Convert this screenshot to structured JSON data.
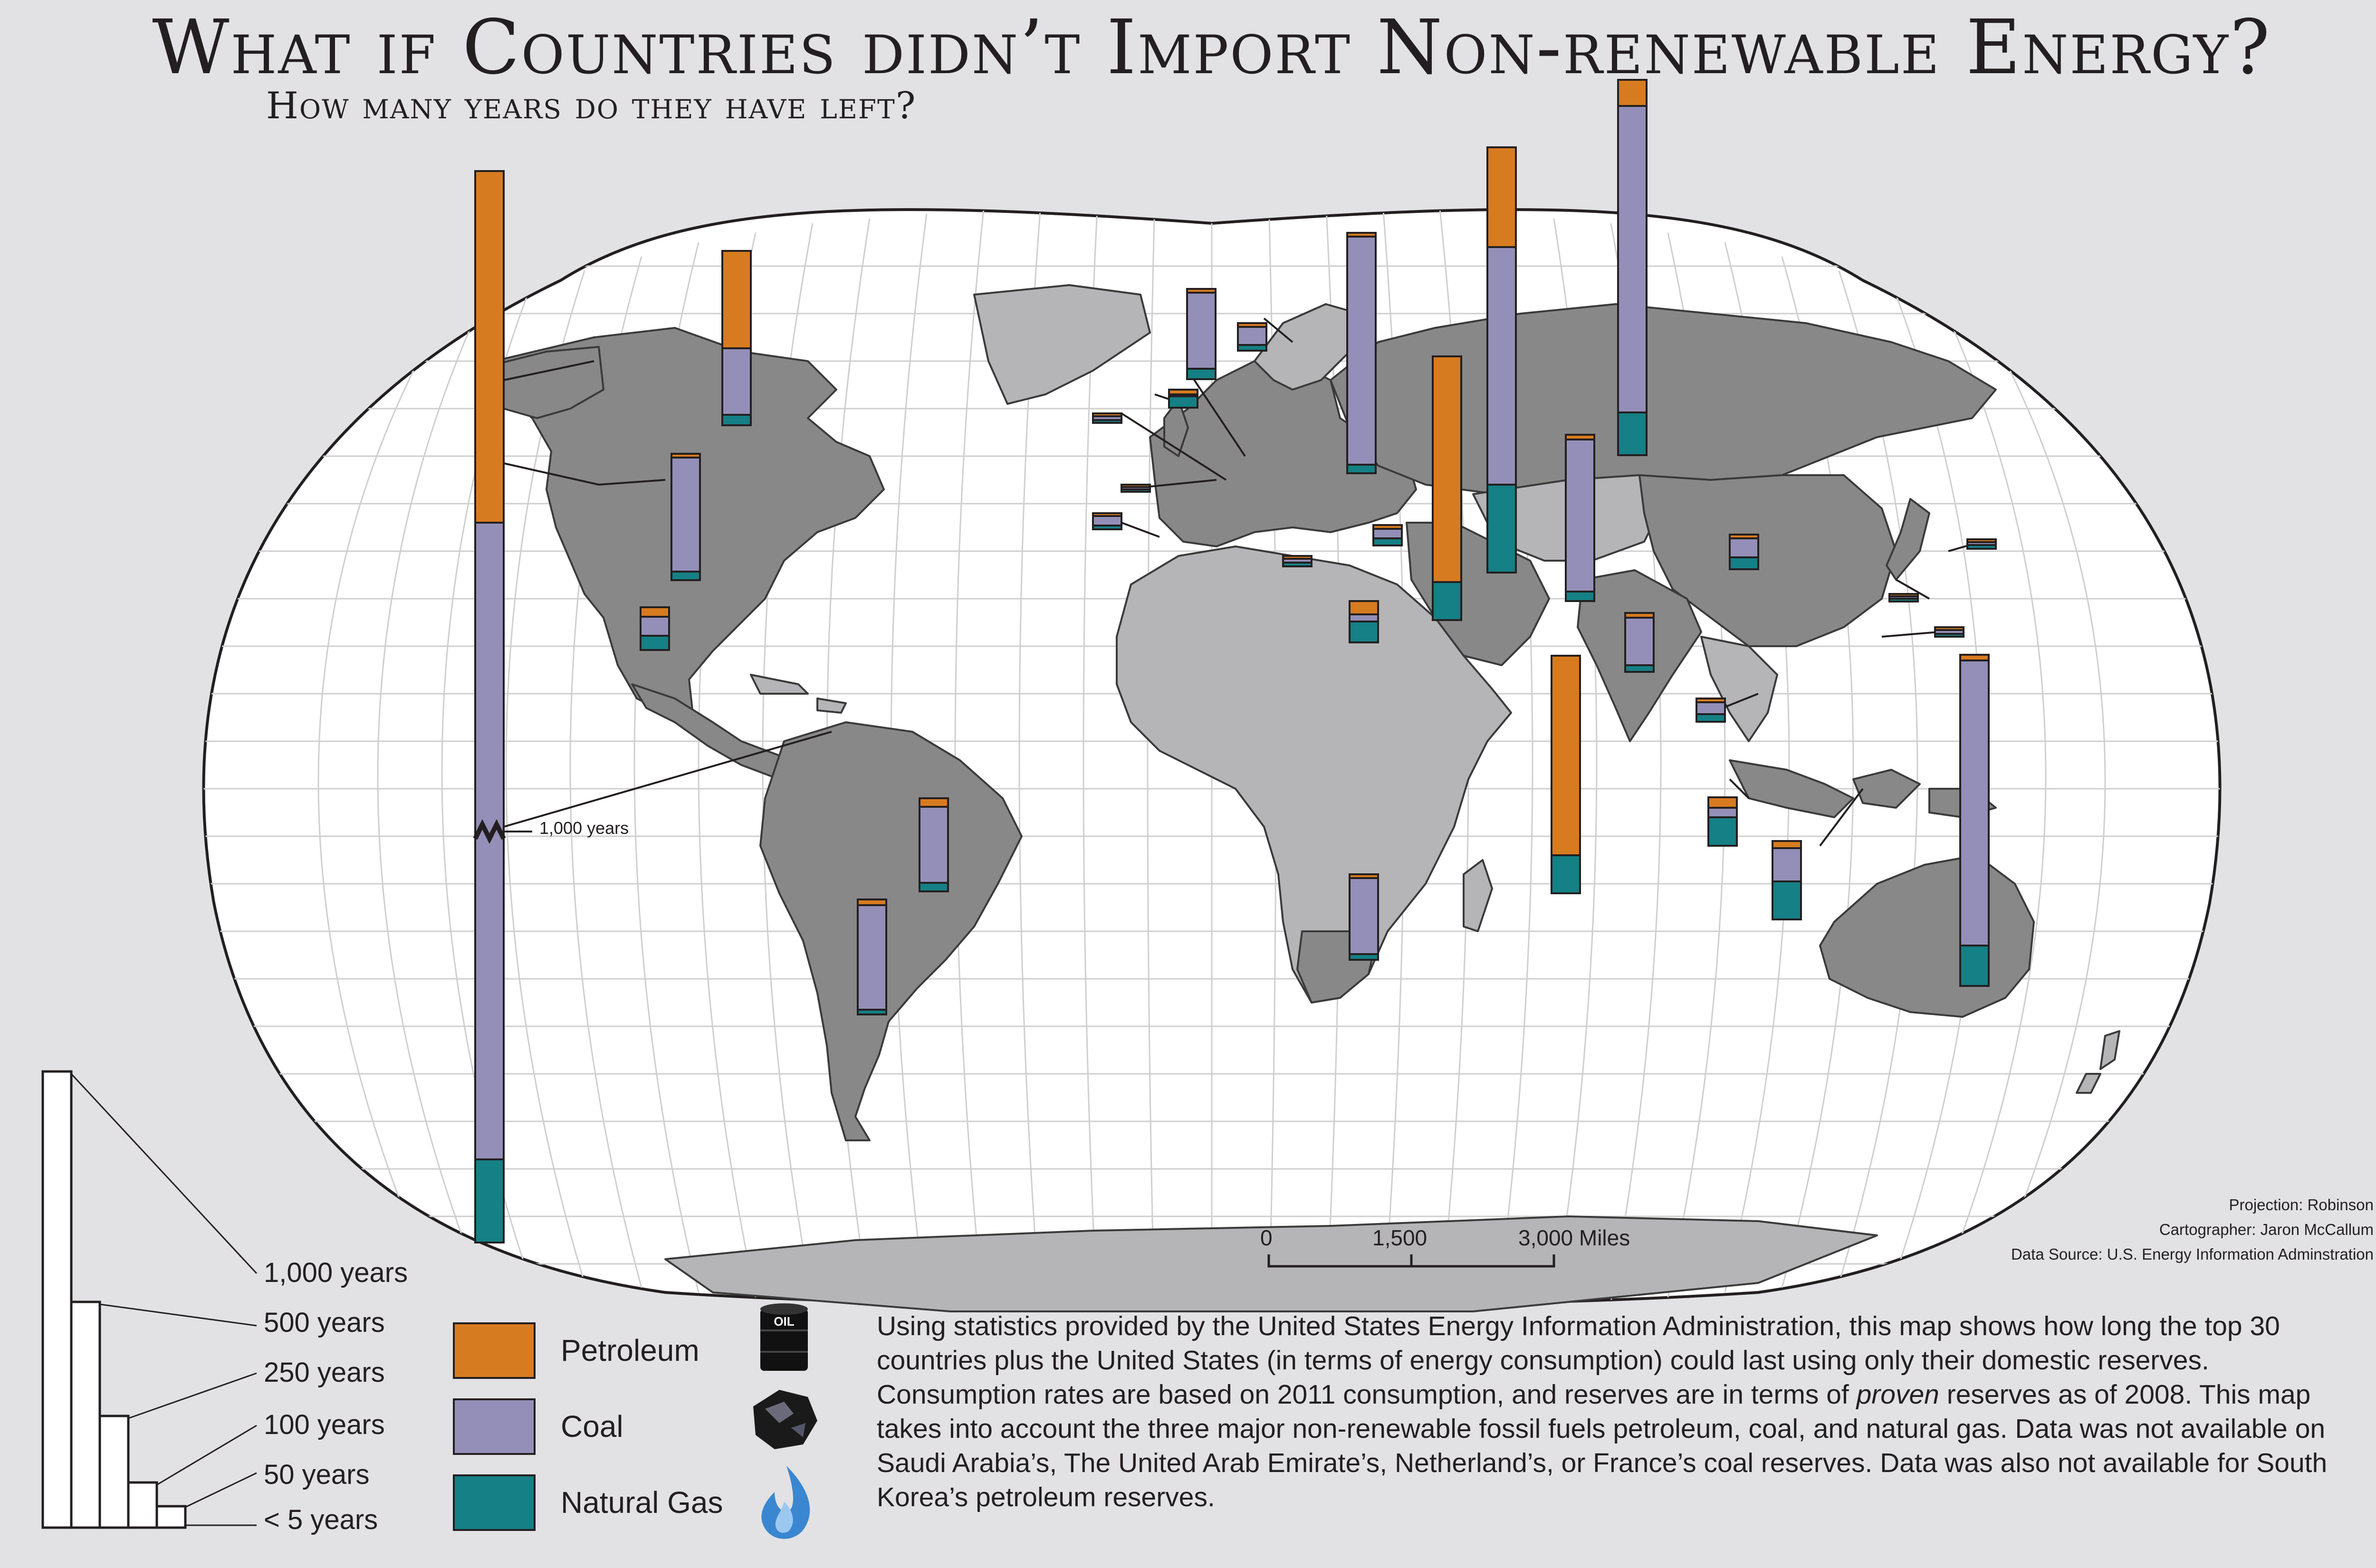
{
  "header": {
    "title": "What if Countries didn’t Import Non-renewable Energy?",
    "subtitle": "How many years do they have left?"
  },
  "legend": {
    "items": [
      {
        "label": "Petroleum",
        "color": "#d77b20",
        "icon": "oil-barrel-icon",
        "icon_text": "OIL"
      },
      {
        "label": "Coal",
        "color": "#948fb8",
        "icon": "coal-lump-icon"
      },
      {
        "label": "Natural Gas",
        "color": "#158085",
        "icon": "gas-flame-icon"
      }
    ]
  },
  "size_scale": {
    "labels": [
      "1,000 years",
      "500 years",
      "250 years",
      "100 years",
      "50 years",
      "< 5 years"
    ]
  },
  "map": {
    "long_bar_break_label": "1,000 years",
    "colors": {
      "ocean": "#ffffff",
      "land_dark": "#888888",
      "land_light": "#b5b5b7",
      "graticule": "#c8c8c8",
      "background": "#e2e2e4"
    },
    "scale_bar": {
      "ticks": [
        "0",
        "1,500",
        "3,000 Miles"
      ]
    }
  },
  "credits": {
    "projection": "Projection: Robinson",
    "cartographer": "Cartographer: Jaron McCallum",
    "source": "Data Source: U.S. Energy Information Adminstration"
  },
  "description": {
    "p1_a": "Using statistics provided by the United States Energy Information Administration, this map shows how long the top 30 countries plus the United States (in terms of energy consumption) could last using only their domestic reserves.  Consumption rates are based on 2011 consumption, and reserves are in terms of ",
    "p1_em": "proven",
    "p1_b": " reserves as of 2008.  This map takes into account the three major non-renewable fossil fuels petroleum, coal, and natural gas.  Data was not available on Saudi Arabia’s, The United Arab Emirate’s, Netherland’s, or France’s coal reserves.  Data was also not available for South Korea’s petroleum reserves."
  }
}
